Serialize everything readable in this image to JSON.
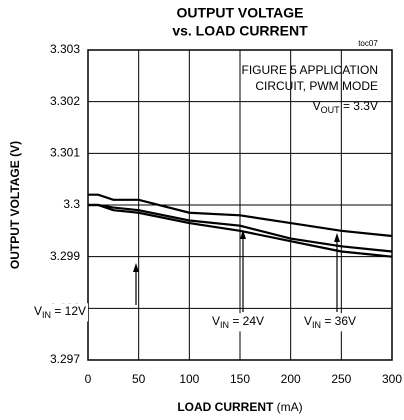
{
  "chart_data": {
    "type": "line",
    "title": [
      "OUTPUT VOLTAGE",
      "vs. LOAD CURRENT"
    ],
    "tag": "toc07",
    "note": [
      "FIGURE 5 APPLICATION",
      "CIRCUIT, PWM MODE"
    ],
    "note_vout": {
      "main": "V",
      "sub": "OUT",
      "after": " = 3.3V"
    },
    "xlabel": {
      "bold": "LOAD CURRENT",
      "unit": "(mA)"
    },
    "ylabel": "OUTPUT VOLTAGE  (V)",
    "x": [
      0,
      10,
      25,
      50,
      100,
      150,
      200,
      250,
      300
    ],
    "series": [
      {
        "color": "#000000",
        "values": [
          3.3002,
          3.3002,
          3.3001,
          3.3001,
          3.29985,
          3.2998,
          3.29965,
          3.2995,
          3.2994
        ]
      },
      {
        "color": "#000000",
        "values": [
          3.3,
          3.3,
          3.29995,
          3.2999,
          3.2997,
          3.2996,
          3.29935,
          3.2992,
          3.2991
        ]
      },
      {
        "color": "#000000",
        "values": [
          3.3,
          3.3,
          3.2999,
          3.29985,
          3.29965,
          3.2995,
          3.2993,
          3.2991,
          3.299
        ]
      }
    ],
    "annotations": [
      {
        "main": "V",
        "sub": "IN",
        "after": " = 12V"
      },
      {
        "main": "V",
        "sub": "IN",
        "after": " = 24V"
      },
      {
        "main": "V",
        "sub": "IN",
        "after": " = 36V"
      }
    ],
    "xlim": [
      0,
      300
    ],
    "xticks": [
      0,
      50,
      100,
      150,
      200,
      250,
      300
    ],
    "ylim": [
      3.297,
      3.303
    ],
    "yticks": [
      3.297,
      3.298,
      3.299,
      3.3,
      3.301,
      3.302,
      3.303
    ],
    "grid": true
  }
}
